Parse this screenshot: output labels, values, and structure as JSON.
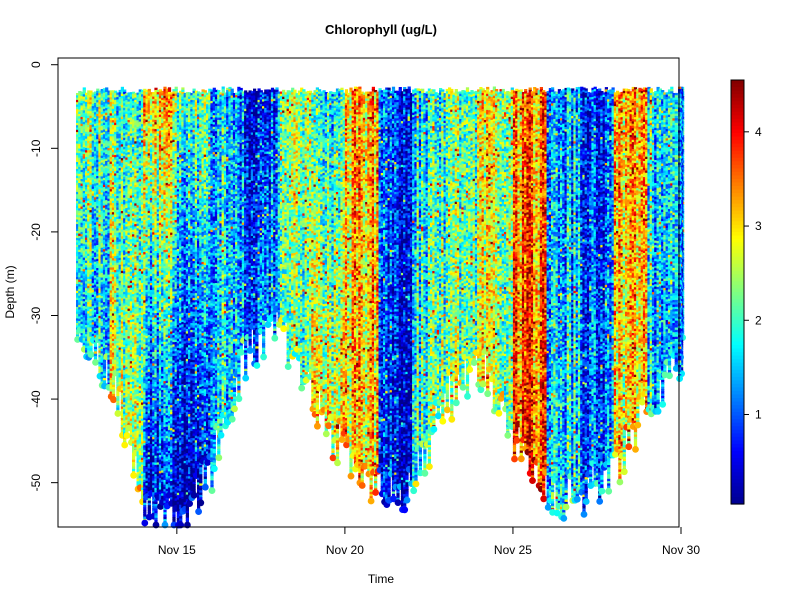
{
  "chart_data": {
    "type": "scatter",
    "title": "Chlorophyll (ug/L)",
    "xlabel": "Time",
    "ylabel": "Depth (m)",
    "x_axis": {
      "type": "date",
      "range": [
        "2019-11-12",
        "2019-11-30"
      ],
      "ticks": [
        {
          "date": "2019-11-15",
          "label": "Nov 15"
        },
        {
          "date": "2019-11-20",
          "label": "Nov 20"
        },
        {
          "date": "2019-11-25",
          "label": "Nov 25"
        },
        {
          "date": "2019-11-30",
          "label": "Nov 30"
        }
      ]
    },
    "y_axis": {
      "range": [
        -56.5,
        2
      ],
      "ticks": [
        0,
        -10,
        -20,
        -30,
        -40,
        -50
      ],
      "tick_labels": [
        "0",
        "-10",
        "-20",
        "-30",
        "-40",
        "-50"
      ]
    },
    "colorbar": {
      "palette": [
        "#00008f",
        "#0000ff",
        "#0080ff",
        "#00ffff",
        "#80ff80",
        "#ffff00",
        "#ff8000",
        "#ff0000",
        "#800000"
      ],
      "range": [
        0.05,
        4.55
      ],
      "ticks": [
        1,
        2,
        3,
        4
      ],
      "tick_labels": [
        "1",
        "2",
        "3",
        "4"
      ]
    },
    "grid": false,
    "legend": "colorbar-right",
    "profiles": [
      {
        "start": "2019-11-12",
        "end": "2019-11-13",
        "max_depth": -30,
        "chl_surface": 2.2,
        "chl_deep": 1.6
      },
      {
        "start": "2019-11-13",
        "end": "2019-11-14",
        "max_depth": -38,
        "chl_surface": 2.0,
        "chl_deep": 2.6
      },
      {
        "start": "2019-11-14",
        "end": "2019-11-15",
        "max_depth": -52,
        "chl_surface": 3.0,
        "chl_deep": 0.3
      },
      {
        "start": "2019-11-15",
        "end": "2019-11-16",
        "max_depth": -55,
        "chl_surface": 2.0,
        "chl_deep": 0.2
      },
      {
        "start": "2019-11-16",
        "end": "2019-11-17",
        "max_depth": -48,
        "chl_surface": 1.4,
        "chl_deep": 1.6
      },
      {
        "start": "2019-11-17",
        "end": "2019-11-18",
        "max_depth": -35,
        "chl_surface": 0.6,
        "chl_deep": 1.2
      },
      {
        "start": "2019-11-18",
        "end": "2019-11-19",
        "max_depth": -31,
        "chl_surface": 2.4,
        "chl_deep": 2.0
      },
      {
        "start": "2019-11-19",
        "end": "2019-11-20",
        "max_depth": -40,
        "chl_surface": 1.6,
        "chl_deep": 2.8
      },
      {
        "start": "2019-11-20",
        "end": "2019-11-21",
        "max_depth": -47,
        "chl_surface": 3.2,
        "chl_deep": 3.0
      },
      {
        "start": "2019-11-21",
        "end": "2019-11-22",
        "max_depth": -51,
        "chl_surface": 0.9,
        "chl_deep": 0.5
      },
      {
        "start": "2019-11-22",
        "end": "2019-11-23",
        "max_depth": -50,
        "chl_surface": 1.6,
        "chl_deep": 2.0
      },
      {
        "start": "2019-11-23",
        "end": "2019-11-24",
        "max_depth": -40,
        "chl_surface": 2.2,
        "chl_deep": 2.2
      },
      {
        "start": "2019-11-24",
        "end": "2019-11-25",
        "max_depth": -36,
        "chl_surface": 2.6,
        "chl_deep": 2.4
      },
      {
        "start": "2019-11-25",
        "end": "2019-11-26",
        "max_depth": -45,
        "chl_surface": 3.3,
        "chl_deep": 3.6
      },
      {
        "start": "2019-11-26",
        "end": "2019-11-27",
        "max_depth": -52,
        "chl_surface": 1.2,
        "chl_deep": 1.6
      },
      {
        "start": "2019-11-27",
        "end": "2019-11-28",
        "max_depth": -51,
        "chl_surface": 0.9,
        "chl_deep": 1.2
      },
      {
        "start": "2019-11-28",
        "end": "2019-11-29",
        "max_depth": -49,
        "chl_surface": 3.2,
        "chl_deep": 2.8
      },
      {
        "start": "2019-11-29",
        "end": "2019-11-30",
        "max_depth": -40,
        "chl_surface": 1.8,
        "chl_deep": 1.4
      },
      {
        "start": "2019-11-30",
        "end": "2019-11-30",
        "max_depth": -35,
        "chl_surface": 1.2,
        "chl_deep": 1.0
      }
    ]
  }
}
